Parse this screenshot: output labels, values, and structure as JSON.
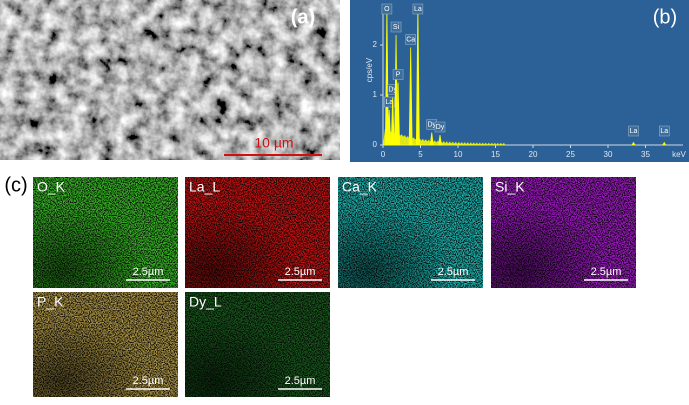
{
  "panel_a": {
    "label": "(a)",
    "scale_bar": "10 µm"
  },
  "panel_b": {
    "label": "(b)"
  },
  "chart_data": {
    "type": "spectrum",
    "x_label": "keV",
    "y_label": "cps/eV",
    "color": "#ffff00",
    "xlim": [
      0,
      40
    ],
    "ylim": [
      0,
      2.8
    ],
    "xticks": [
      0,
      5,
      10,
      15,
      20,
      25,
      30,
      35
    ],
    "yticks": [
      0,
      1,
      2
    ],
    "peaks": [
      {
        "label": "O",
        "x": 0.52,
        "height": 2.75
      },
      {
        "label": "La",
        "x": 0.83,
        "height": 0.7
      },
      {
        "label": "Dy",
        "x": 1.29,
        "height": 0.95
      },
      {
        "label": "Si",
        "x": 1.74,
        "height": 2.2
      },
      {
        "label": "P",
        "x": 2.01,
        "height": 1.25
      },
      {
        "label": "Ca",
        "x": 3.69,
        "height": 1.95
      },
      {
        "label": "La",
        "x": 4.65,
        "height": 2.8
      },
      {
        "label": "Dy",
        "x": 6.5,
        "height": 0.25
      },
      {
        "label": "Dy",
        "x": 7.6,
        "height": 0.2
      },
      {
        "label": "La",
        "x": 33.4,
        "height": 0.05
      },
      {
        "label": "La",
        "x": 37.5,
        "height": 0.05
      }
    ]
  },
  "panel_c": {
    "label": "(c)",
    "maps": [
      {
        "element": "O_K",
        "scale_bar": "2.5µm",
        "color": "#3aba28"
      },
      {
        "element": "La_L",
        "scale_bar": "2.5µm",
        "color": "#c81414"
      },
      {
        "element": "Ca_K",
        "scale_bar": "2.5µm",
        "color": "#1fb8b4"
      },
      {
        "element": "Si_K",
        "scale_bar": "2.5µm",
        "color": "#a01cc4"
      },
      {
        "element": "P_K",
        "scale_bar": "2.5µm",
        "color": "#b09848"
      },
      {
        "element": "Dy_L",
        "scale_bar": "2.5µm",
        "color": "#1a5a1e"
      }
    ]
  }
}
